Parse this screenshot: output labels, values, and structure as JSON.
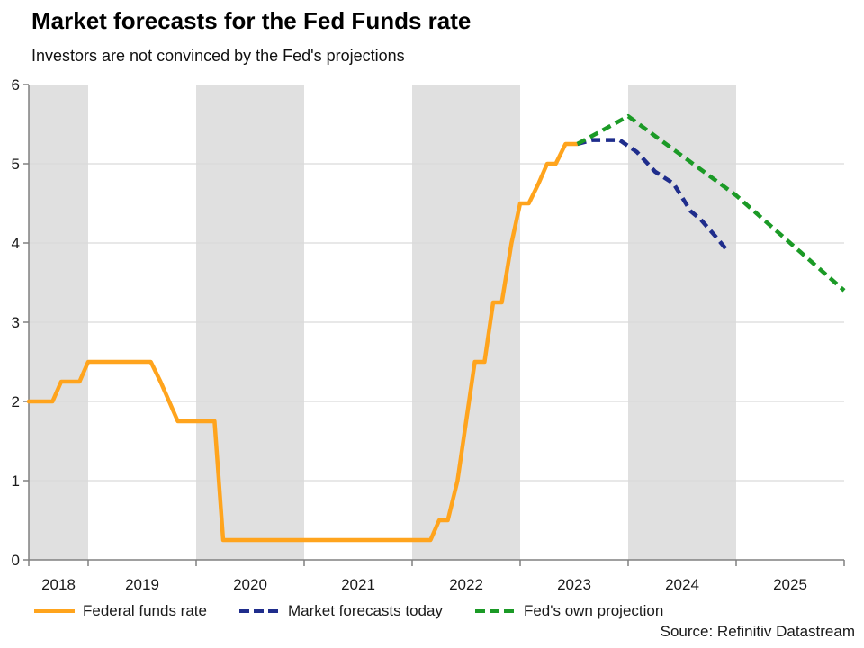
{
  "chart_data": {
    "type": "line",
    "title": "Market forecasts for the Fed Funds rate",
    "subtitle": "Investors are not convinced by the Fed's projections",
    "source": "Source: Refinitiv Datastream",
    "x_domain": [
      2018.45,
      2026
    ],
    "y_domain": [
      0,
      6
    ],
    "y_ticks": [
      0,
      1,
      2,
      3,
      4,
      5,
      6
    ],
    "y_gridlines": [
      1,
      2,
      3,
      4,
      5
    ],
    "x_ticks": [
      2018.45,
      2019,
      2020,
      2021,
      2022,
      2023,
      2024,
      2025,
      2026
    ],
    "x_tick_labels": [
      {
        "text": "2018",
        "t": 2018.725
      },
      {
        "text": "2019",
        "t": 2019.5
      },
      {
        "text": "2020",
        "t": 2020.5
      },
      {
        "text": "2021",
        "t": 2021.5
      },
      {
        "text": "2022",
        "t": 2022.5
      },
      {
        "text": "2023",
        "t": 2023.5
      },
      {
        "text": "2024",
        "t": 2024.5
      },
      {
        "text": "2025",
        "t": 2025.5
      }
    ],
    "shaded_bands": [
      [
        2018.45,
        2019
      ],
      [
        2020,
        2021
      ],
      [
        2022,
        2023
      ],
      [
        2024,
        2025
      ]
    ],
    "grid_on": true,
    "legend_position": "bottom",
    "colors": {
      "band": "#e0e0e0",
      "gridline": "#d9d9d9",
      "axis": "#808080",
      "text": "#1a1a1a"
    },
    "series": [
      {
        "name": "Federal funds rate",
        "color": "#FFA41D",
        "style": "solid",
        "points": [
          [
            2018.45,
            2.0
          ],
          [
            2018.67,
            2.0
          ],
          [
            2018.75,
            2.25
          ],
          [
            2018.92,
            2.25
          ],
          [
            2019.0,
            2.5
          ],
          [
            2019.58,
            2.5
          ],
          [
            2019.67,
            2.25
          ],
          [
            2019.75,
            2.0
          ],
          [
            2019.83,
            1.75
          ],
          [
            2020.17,
            1.75
          ],
          [
            2020.25,
            0.25
          ],
          [
            2022.17,
            0.25
          ],
          [
            2022.25,
            0.5
          ],
          [
            2022.33,
            0.5
          ],
          [
            2022.42,
            1.0
          ],
          [
            2022.5,
            1.75
          ],
          [
            2022.58,
            2.5
          ],
          [
            2022.67,
            2.5
          ],
          [
            2022.75,
            3.25
          ],
          [
            2022.83,
            3.25
          ],
          [
            2022.92,
            4.0
          ],
          [
            2023.0,
            4.5
          ],
          [
            2023.08,
            4.5
          ],
          [
            2023.17,
            4.75
          ],
          [
            2023.25,
            5.0
          ],
          [
            2023.33,
            5.0
          ],
          [
            2023.42,
            5.25
          ],
          [
            2023.53,
            5.25
          ]
        ]
      },
      {
        "name": "Market forecasts today",
        "color": "#1F2D8C",
        "style": "dashed",
        "points": [
          [
            2023.53,
            5.25
          ],
          [
            2023.67,
            5.3
          ],
          [
            2023.92,
            5.3
          ],
          [
            2024.08,
            5.15
          ],
          [
            2024.25,
            4.9
          ],
          [
            2024.42,
            4.75
          ],
          [
            2024.58,
            4.4
          ],
          [
            2024.67,
            4.3
          ],
          [
            2024.83,
            4.05
          ],
          [
            2024.92,
            3.9
          ]
        ]
      },
      {
        "name": "Fed's own projection",
        "color": "#1B9A26",
        "style": "dashed",
        "points": [
          [
            2023.53,
            5.25
          ],
          [
            2024.0,
            5.6
          ],
          [
            2025.0,
            4.6
          ],
          [
            2026.0,
            3.4
          ]
        ]
      }
    ]
  }
}
